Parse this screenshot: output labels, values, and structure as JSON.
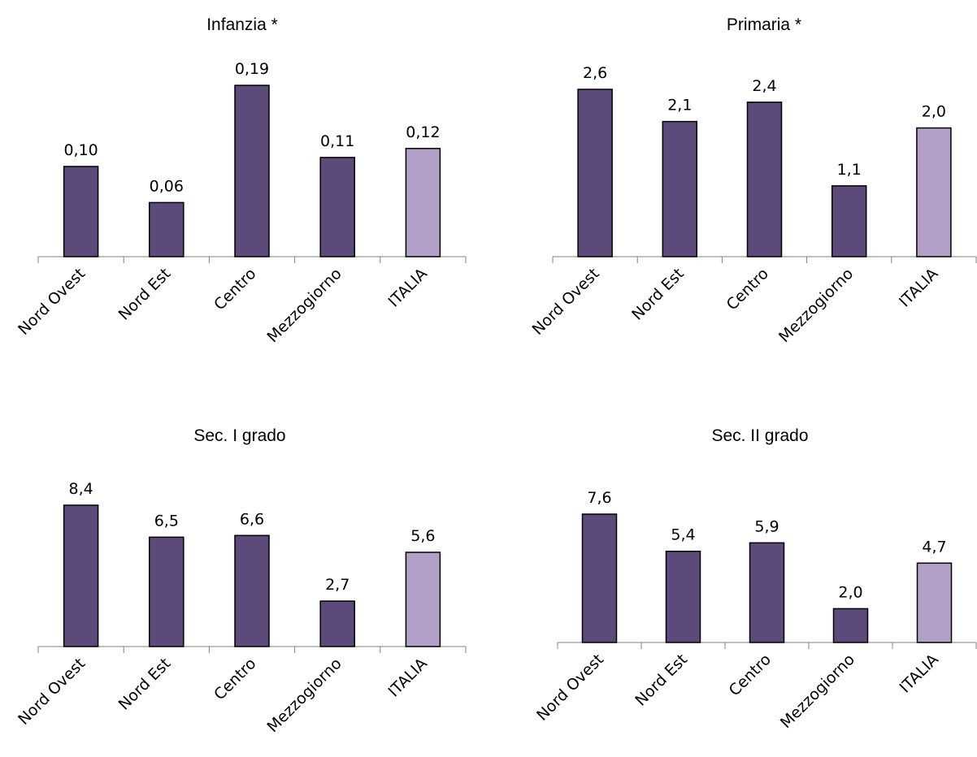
{
  "colors": {
    "region_bar": "#5c4a7a",
    "italia_bar": "#b2a0c8",
    "bar_border": "#000000",
    "axis": "#808080"
  },
  "chart_data": [
    {
      "type": "bar",
      "title": "Infanzia *",
      "categories": [
        "Nord Ovest",
        "Nord Est",
        "Centro",
        "Mezzogiorno",
        "ITALIA"
      ],
      "values": [
        0.1,
        0.06,
        0.19,
        0.11,
        0.12
      ],
      "value_labels": [
        "0,10",
        "0,06",
        "0,19",
        "0,11",
        "0,12"
      ],
      "ylim": [
        0,
        0.2
      ],
      "grid": false,
      "highlighted_category": "ITALIA"
    },
    {
      "type": "bar",
      "title": "Primaria *",
      "categories": [
        "Nord Ovest",
        "Nord Est",
        "Centro",
        "Mezzogiorno",
        "ITALIA"
      ],
      "values": [
        2.6,
        2.1,
        2.4,
        1.1,
        2.0
      ],
      "value_labels": [
        "2,6",
        "2,1",
        "2,4",
        "1,1",
        "2,0"
      ],
      "ylim": [
        0,
        2.6
      ],
      "grid": false,
      "highlighted_category": "ITALIA"
    },
    {
      "type": "bar",
      "title": "Sec. I grado",
      "categories": [
        "Nord Ovest",
        "Nord Est",
        "Centro",
        "Mezzogiorno",
        "ITALIA"
      ],
      "values": [
        8.4,
        6.5,
        6.6,
        2.7,
        5.6
      ],
      "value_labels": [
        "8,4",
        "6,5",
        "6,6",
        "2,7",
        "5,6"
      ],
      "ylim": [
        0,
        8.4
      ],
      "grid": false,
      "highlighted_category": "ITALIA"
    },
    {
      "type": "bar",
      "title": "Sec. II grado",
      "categories": [
        "Nord Ovest",
        "Nord Est",
        "Centro",
        "Mezzogiorno",
        "ITALIA"
      ],
      "values": [
        7.6,
        5.4,
        5.9,
        2.0,
        4.7
      ],
      "value_labels": [
        "7,6",
        "5,4",
        "5,9",
        "2,0",
        "4,7"
      ],
      "ylim": [
        0,
        7.6
      ],
      "grid": false,
      "highlighted_category": "ITALIA"
    }
  ]
}
